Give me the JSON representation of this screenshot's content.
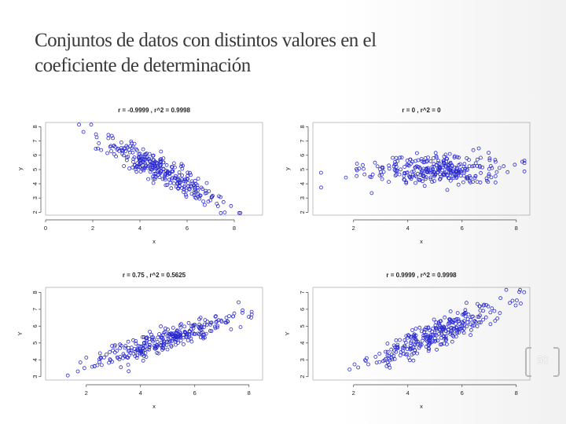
{
  "slide": {
    "title_line1": "Conjuntos de datos con distintos valores en el",
    "title_line2": "coeficiente de determinación",
    "page_number": "50"
  },
  "colors": {
    "points": "#2a2ad0",
    "title": "#3a3a3a"
  },
  "chart_data": [
    {
      "type": "scatter",
      "title": "r = -0.9999 , r^2 = 0.9998",
      "xlabel": "x",
      "ylabel": "y",
      "x_ticks": [
        "0",
        "2",
        "4",
        "6",
        "8"
      ],
      "y_ticks": [
        "2",
        "3",
        "4",
        "5",
        "6",
        "7",
        "8"
      ],
      "xlim": [
        0,
        9.2
      ],
      "ylim": [
        1.8,
        8.3
      ],
      "r": -0.9999,
      "n": 300,
      "x_mean": 4.8,
      "x_sd": 1.25,
      "y_mean": 5.0,
      "y_sd": 1.0
    },
    {
      "type": "scatter",
      "title": "r = 0 , r^2 = 0",
      "xlabel": "x",
      "ylabel": "y",
      "x_ticks": [
        "2",
        "4",
        "6",
        "8"
      ],
      "y_ticks": [
        "2",
        "3",
        "4",
        "5",
        "6",
        "7",
        "8"
      ],
      "xlim": [
        0.5,
        8.5
      ],
      "ylim": [
        1.8,
        8.3
      ],
      "r": 0,
      "n": 300,
      "x_mean": 5.0,
      "x_sd": 1.3,
      "y_mean": 5.0,
      "y_sd": 1.0
    },
    {
      "type": "scatter",
      "title": "r = 0.75 , r^2 = 0.5625",
      "xlabel": "x",
      "ylabel": "Y",
      "x_ticks": [
        "2",
        "4",
        "6",
        "8"
      ],
      "y_ticks": [
        "3",
        "4",
        "5",
        "6",
        "7",
        "8"
      ],
      "xlim": [
        0.5,
        8.5
      ],
      "ylim": [
        2.8,
        8.3
      ],
      "r": 0.75,
      "n": 300,
      "x_mean": 5.0,
      "x_sd": 1.4,
      "y_mean": 5.2,
      "y_sd": 0.95
    },
    {
      "type": "scatter",
      "title": "r = 0.9999 , r^2 = 0.9998",
      "xlabel": "x",
      "ylabel": "Y",
      "x_ticks": [
        "2",
        "4",
        "6",
        "8"
      ],
      "y_ticks": [
        "2",
        "3",
        "4",
        "5",
        "6",
        "7"
      ],
      "xlim": [
        0.5,
        8.5
      ],
      "ylim": [
        1.8,
        7.3
      ],
      "r": 0.9999,
      "n": 300,
      "x_mean": 5.0,
      "x_sd": 1.3,
      "y_mean": 4.5,
      "y_sd": 0.9
    }
  ]
}
